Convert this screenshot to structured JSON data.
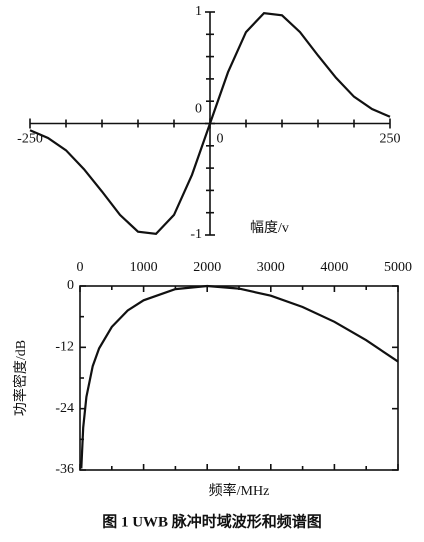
{
  "chart_data": [
    {
      "type": "line",
      "x": [
        -250,
        -225,
        -200,
        -175,
        -150,
        -125,
        -100,
        -75,
        -50,
        -25,
        0,
        25,
        50,
        75,
        100,
        125,
        150,
        175,
        200,
        225,
        250
      ],
      "series": [
        {
          "color": "#111111",
          "values": [
            -0.06,
            -0.13,
            -0.24,
            -0.41,
            -0.61,
            -0.82,
            -0.97,
            -0.99,
            -0.82,
            -0.46,
            0,
            0.46,
            0.82,
            0.99,
            0.97,
            0.82,
            0.61,
            0.41,
            0.24,
            0.13,
            0.06
          ]
        }
      ],
      "xlim": [
        -250,
        250
      ],
      "ylim": [
        -1,
        1
      ],
      "xticks": [
        -250,
        0,
        250
      ],
      "yticks": [
        -1,
        0,
        1
      ],
      "x_minor_ticks": [
        -200,
        -150,
        -100,
        -50,
        50,
        100,
        150,
        200
      ],
      "y_minor_ticks": [
        -0.8,
        -0.6,
        -0.4,
        -0.2,
        0.2,
        0.4,
        0.6,
        0.8
      ],
      "ylabel": "幅度/v",
      "axes_through_origin": true
    },
    {
      "type": "line",
      "x": [
        20,
        50,
        100,
        200,
        300,
        500,
        750,
        1000,
        1500,
        2000,
        2500,
        3000,
        3500,
        4000,
        4500,
        5000
      ],
      "series": [
        {
          "color": "#111111",
          "values": [
            -35.7,
            -27.7,
            -21.7,
            -15.7,
            -12.2,
            -8.0,
            -4.8,
            -2.8,
            -0.6,
            0,
            -0.5,
            -1.9,
            -4.1,
            -7.0,
            -10.6,
            -14.8
          ]
        }
      ],
      "xlim": [
        0,
        5000
      ],
      "ylim": [
        -36,
        0
      ],
      "xticks": [
        0,
        1000,
        2000,
        3000,
        4000,
        5000
      ],
      "yticks": [
        0,
        -12,
        -24,
        -36
      ],
      "x_minor_ticks": [
        500,
        1500,
        2500,
        3500,
        4500
      ],
      "y_minor_ticks": [
        -6,
        -18,
        -30
      ],
      "xlabel": "频率/MHz",
      "ylabel": "功率密度/dB",
      "xaxis_position": "top",
      "frame": true
    }
  ],
  "caption": "图 1  UWB 脉冲时域波形和频谱图"
}
